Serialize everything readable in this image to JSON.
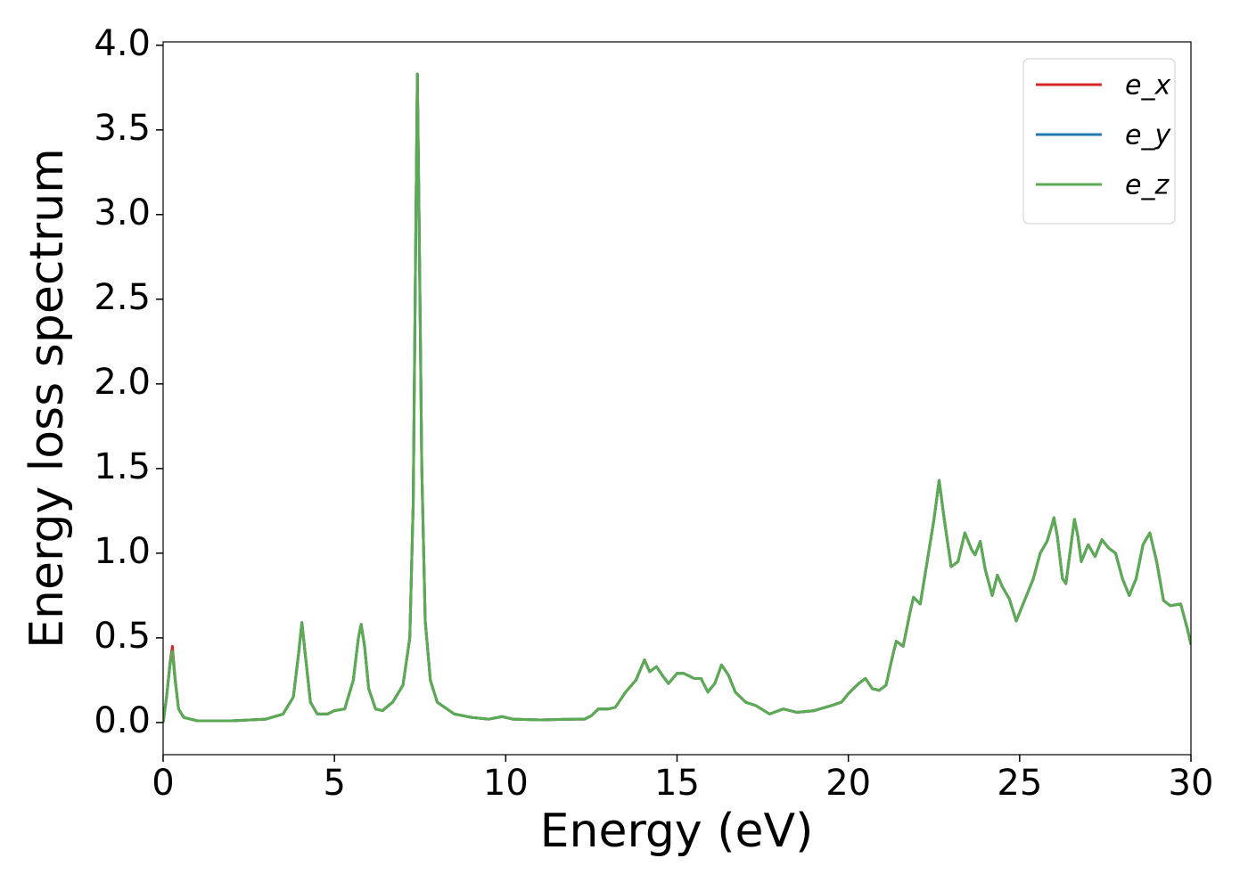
{
  "chart_data": {
    "type": "line",
    "xlabel": "Energy (eV)",
    "ylabel": "Energy loss spectrum",
    "xlim": [
      0,
      30
    ],
    "xticks": [
      0,
      5,
      10,
      15,
      20,
      25,
      30
    ],
    "ylim": [
      -0.19,
      4.02
    ],
    "yticks": [
      {
        "value": 0,
        "label": "0.0"
      },
      0.5,
      {
        "value": 1,
        "label": "1.0"
      },
      1.5,
      {
        "value": 2,
        "label": "2.0"
      },
      2.5,
      {
        "value": 3,
        "label": "3.0"
      },
      3.5,
      {
        "value": 4,
        "label": "4.0"
      }
    ],
    "legend": "upper right",
    "grid": false,
    "x": [
      0,
      0.1,
      0.2,
      0.27,
      0.35,
      0.45,
      0.6,
      1,
      2,
      3,
      3.5,
      3.8,
      3.95,
      4.05,
      4.15,
      4.3,
      4.5,
      4.8,
      5,
      5.3,
      5.55,
      5.7,
      5.78,
      5.88,
      6,
      6.2,
      6.4,
      6.7,
      7,
      7.2,
      7.3,
      7.37,
      7.42,
      7.47,
      7.55,
      7.65,
      7.8,
      8,
      8.5,
      9,
      9.5,
      9.9,
      10.2,
      11,
      12,
      12.3,
      12.5,
      12.7,
      13,
      13.2,
      13.5,
      13.8,
      14.05,
      14.2,
      14.4,
      14.6,
      14.75,
      15,
      15.2,
      15.5,
      15.7,
      15.9,
      16.1,
      16.3,
      16.5,
      16.7,
      17,
      17.3,
      17.7,
      18.1,
      18.5,
      19,
      19.5,
      19.8,
      20,
      20.3,
      20.5,
      20.7,
      20.9,
      21.1,
      21.3,
      21.4,
      21.6,
      21.8,
      21.9,
      22.1,
      22.3,
      22.5,
      22.65,
      22.8,
      23,
      23.2,
      23.4,
      23.6,
      23.7,
      23.85,
      24,
      24.2,
      24.35,
      24.5,
      24.7,
      24.9,
      25.1,
      25.4,
      25.6,
      25.8,
      25.95,
      26,
      26.1,
      26.25,
      26.35,
      26.5,
      26.6,
      26.7,
      26.8,
      27,
      27.2,
      27.4,
      27.6,
      27.8,
      28,
      28.2,
      28.4,
      28.6,
      28.8,
      29,
      29.2,
      29.4,
      29.7,
      29.9,
      30
    ],
    "series": [
      {
        "name": "e_x",
        "color": "#d62728",
        "values": [
          0,
          0.15,
          0.35,
          0.45,
          0.26,
          0.08,
          0.03,
          0.01,
          0.01,
          0.02,
          0.05,
          0.15,
          0.4,
          0.59,
          0.4,
          0.12,
          0.05,
          0.05,
          0.07,
          0.08,
          0.25,
          0.5,
          0.58,
          0.45,
          0.2,
          0.08,
          0.07,
          0.12,
          0.22,
          0.5,
          1.3,
          2.8,
          3.83,
          3,
          1.5,
          0.6,
          0.25,
          0.12,
          0.05,
          0.03,
          0.02,
          0.035,
          0.02,
          0.015,
          0.02,
          0.02,
          0.04,
          0.08,
          0.08,
          0.09,
          0.18,
          0.25,
          0.37,
          0.3,
          0.33,
          0.27,
          0.23,
          0.29,
          0.29,
          0.26,
          0.26,
          0.18,
          0.23,
          0.34,
          0.28,
          0.18,
          0.12,
          0.1,
          0.05,
          0.08,
          0.06,
          0.07,
          0.1,
          0.12,
          0.17,
          0.23,
          0.26,
          0.2,
          0.19,
          0.22,
          0.4,
          0.48,
          0.45,
          0.65,
          0.74,
          0.7,
          0.95,
          1.2,
          1.43,
          1.2,
          0.92,
          0.95,
          1.12,
          1.02,
          0.99,
          1.07,
          0.9,
          0.75,
          0.87,
          0.8,
          0.73,
          0.6,
          0.7,
          0.85,
          1,
          1.07,
          1.17,
          1.21,
          1.1,
          0.85,
          0.82,
          1.05,
          1.2,
          1.1,
          0.95,
          1.05,
          0.98,
          1.08,
          1.03,
          1,
          0.85,
          0.75,
          0.85,
          1.05,
          1.12,
          0.95,
          0.72,
          0.69,
          0.7,
          0.55,
          0.46
        ]
      },
      {
        "name": "e_y",
        "color": "#1f77b4",
        "values": [
          0,
          0.15,
          0.34,
          0.42,
          0.25,
          0.08,
          0.03,
          0.01,
          0.01,
          0.02,
          0.05,
          0.15,
          0.4,
          0.59,
          0.4,
          0.12,
          0.05,
          0.05,
          0.07,
          0.08,
          0.25,
          0.5,
          0.58,
          0.45,
          0.2,
          0.08,
          0.07,
          0.12,
          0.22,
          0.5,
          1.3,
          2.8,
          3.83,
          3,
          1.5,
          0.6,
          0.25,
          0.12,
          0.05,
          0.03,
          0.02,
          0.035,
          0.02,
          0.015,
          0.02,
          0.02,
          0.04,
          0.08,
          0.08,
          0.09,
          0.18,
          0.25,
          0.37,
          0.3,
          0.33,
          0.27,
          0.23,
          0.29,
          0.29,
          0.26,
          0.26,
          0.18,
          0.23,
          0.34,
          0.28,
          0.18,
          0.12,
          0.1,
          0.05,
          0.08,
          0.06,
          0.07,
          0.1,
          0.12,
          0.17,
          0.23,
          0.26,
          0.2,
          0.19,
          0.22,
          0.4,
          0.48,
          0.45,
          0.65,
          0.74,
          0.7,
          0.95,
          1.2,
          1.43,
          1.2,
          0.92,
          0.95,
          1.12,
          1.02,
          0.99,
          1.07,
          0.9,
          0.75,
          0.87,
          0.8,
          0.73,
          0.6,
          0.7,
          0.85,
          1,
          1.07,
          1.17,
          1.21,
          1.1,
          0.85,
          0.82,
          1.05,
          1.2,
          1.1,
          0.95,
          1.05,
          0.98,
          1.08,
          1.03,
          1,
          0.85,
          0.75,
          0.85,
          1.05,
          1.12,
          0.95,
          0.72,
          0.69,
          0.7,
          0.55,
          0.46
        ]
      },
      {
        "name": "e_z",
        "color": "#5aab52",
        "values": [
          0,
          0.15,
          0.34,
          0.42,
          0.25,
          0.08,
          0.03,
          0.01,
          0.01,
          0.02,
          0.05,
          0.15,
          0.4,
          0.59,
          0.4,
          0.12,
          0.05,
          0.05,
          0.07,
          0.08,
          0.25,
          0.5,
          0.58,
          0.45,
          0.2,
          0.08,
          0.07,
          0.12,
          0.22,
          0.5,
          1.3,
          2.8,
          3.83,
          3,
          1.5,
          0.6,
          0.25,
          0.12,
          0.05,
          0.03,
          0.02,
          0.035,
          0.02,
          0.015,
          0.02,
          0.02,
          0.04,
          0.08,
          0.08,
          0.09,
          0.18,
          0.25,
          0.37,
          0.3,
          0.33,
          0.27,
          0.23,
          0.29,
          0.29,
          0.26,
          0.26,
          0.18,
          0.23,
          0.34,
          0.28,
          0.18,
          0.12,
          0.1,
          0.05,
          0.08,
          0.06,
          0.07,
          0.1,
          0.12,
          0.17,
          0.23,
          0.26,
          0.2,
          0.19,
          0.22,
          0.4,
          0.48,
          0.45,
          0.65,
          0.74,
          0.7,
          0.95,
          1.2,
          1.43,
          1.2,
          0.92,
          0.95,
          1.12,
          1.02,
          0.99,
          1.07,
          0.9,
          0.75,
          0.87,
          0.8,
          0.73,
          0.6,
          0.7,
          0.85,
          1,
          1.07,
          1.17,
          1.21,
          1.1,
          0.85,
          0.82,
          1.05,
          1.2,
          1.1,
          0.95,
          1.05,
          0.98,
          1.08,
          1.03,
          1,
          0.85,
          0.75,
          0.85,
          1.05,
          1.12,
          0.95,
          0.72,
          0.69,
          0.7,
          0.55,
          0.46
        ]
      }
    ]
  }
}
